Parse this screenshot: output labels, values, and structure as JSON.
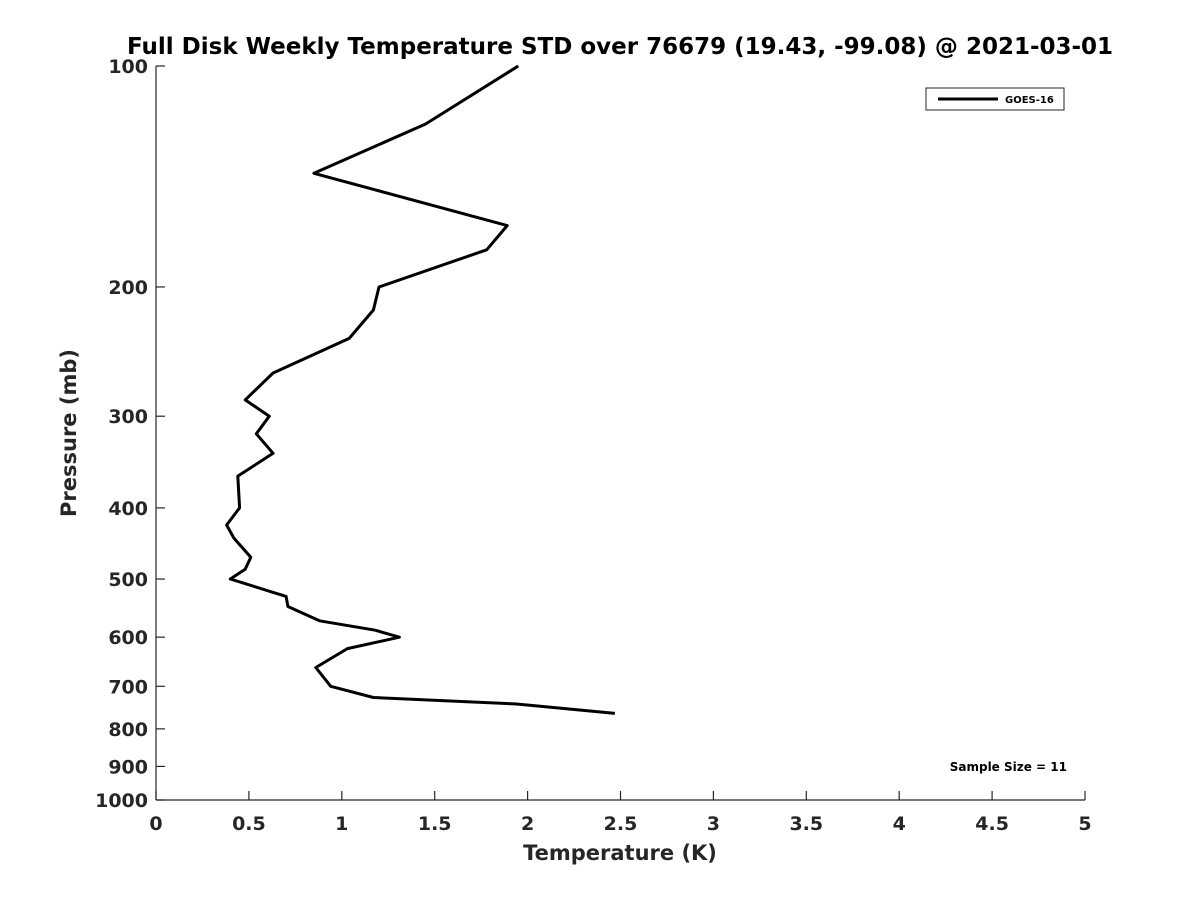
{
  "chart_data": {
    "type": "line",
    "title": "Full Disk Weekly Temperature STD over 76679 (19.43, -99.08) @ 2021-03-01",
    "xlabel": "Temperature (K)",
    "ylabel": "Pressure (mb)",
    "xlim": [
      0,
      5
    ],
    "ylim": [
      100,
      1000
    ],
    "y_scale": "log",
    "y_reversed": true,
    "x_ticks": [
      "0",
      "0.5",
      "1",
      "1.5",
      "2",
      "2.5",
      "3",
      "3.5",
      "4",
      "4.5",
      "5"
    ],
    "x_tick_values": [
      0,
      0.5,
      1,
      1.5,
      2,
      2.5,
      3,
      3.5,
      4,
      4.5,
      5
    ],
    "y_ticks": [
      "100",
      "200",
      "300",
      "400",
      "500",
      "600",
      "700",
      "800",
      "900",
      "1000"
    ],
    "y_tick_values": [
      100,
      200,
      300,
      400,
      500,
      600,
      700,
      800,
      900,
      1000
    ],
    "grid": false,
    "legend_position": "top-right",
    "series": [
      {
        "name": "GOES-16",
        "color": "#000000",
        "points": [
          [
            1.95,
            100
          ],
          [
            1.45,
            120
          ],
          [
            0.85,
            140
          ],
          [
            1.89,
            165
          ],
          [
            1.78,
            178
          ],
          [
            1.2,
            200
          ],
          [
            1.17,
            215
          ],
          [
            1.04,
            235
          ],
          [
            0.63,
            262
          ],
          [
            0.48,
            285
          ],
          [
            0.61,
            300
          ],
          [
            0.54,
            317
          ],
          [
            0.63,
            337
          ],
          [
            0.44,
            362
          ],
          [
            0.45,
            400
          ],
          [
            0.38,
            422
          ],
          [
            0.42,
            440
          ],
          [
            0.51,
            467
          ],
          [
            0.48,
            485
          ],
          [
            0.4,
            500
          ],
          [
            0.7,
            528
          ],
          [
            0.71,
            545
          ],
          [
            0.88,
            570
          ],
          [
            1.18,
            587
          ],
          [
            1.31,
            600
          ],
          [
            1.03,
            622
          ],
          [
            0.86,
            660
          ],
          [
            0.94,
            700
          ],
          [
            1.17,
            725
          ],
          [
            1.94,
            740
          ],
          [
            2.47,
            762
          ]
        ]
      }
    ],
    "annotations": [
      {
        "text": "Sample Size = 11",
        "position": "bottom-right"
      }
    ]
  }
}
